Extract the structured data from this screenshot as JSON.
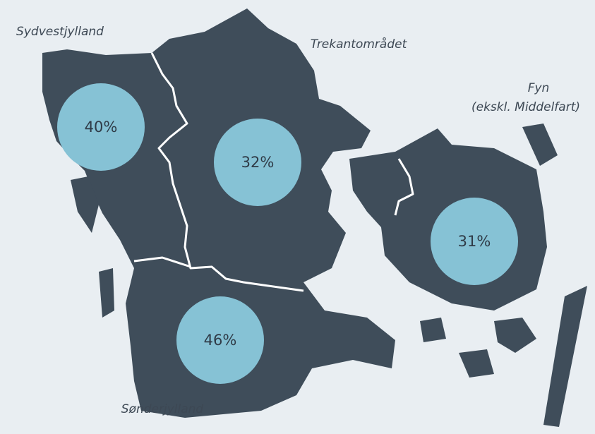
{
  "regions": [
    {
      "name": "Sydvestjylland",
      "share": "40%"
    },
    {
      "name": "Trekantområdet",
      "share": "32%"
    },
    {
      "name": "Fyn",
      "note": "(ekskl. Middelfart)",
      "share": "31%"
    },
    {
      "name": "Sønderjylland",
      "share": "46%"
    }
  ]
}
